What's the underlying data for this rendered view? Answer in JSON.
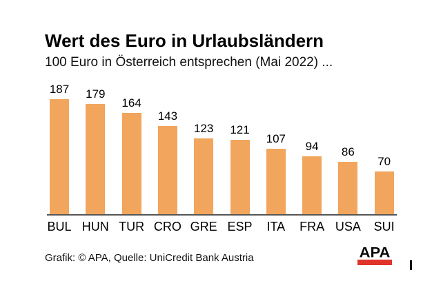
{
  "header": {
    "title": "Wert des Euro in Urlaubsländern",
    "subtitle": "100 Euro in Österreich entsprechen (Mai 2022) ..."
  },
  "chart_data": {
    "type": "bar",
    "title": "Wert des Euro in Urlaubsländern",
    "subtitle": "100 Euro in Österreich entsprechen (Mai 2022) ...",
    "categories": [
      "BUL",
      "HUN",
      "TUR",
      "CRO",
      "GRE",
      "ESP",
      "ITA",
      "FRA",
      "USA",
      "SUI"
    ],
    "values": [
      187,
      179,
      164,
      143,
      123,
      121,
      107,
      94,
      86,
      70
    ],
    "xlabel": "",
    "ylabel": "",
    "ylim": [
      0,
      200
    ],
    "grid": false,
    "legend": false,
    "value_labels_shown": true,
    "bar_color": "#F2A55C",
    "axis_line_color": "#555555"
  },
  "footer": {
    "credit": "Grafik: © APA, Quelle: UniCredit Bank Austria",
    "logo_text": "APA",
    "logo_red": "#E0342B"
  }
}
